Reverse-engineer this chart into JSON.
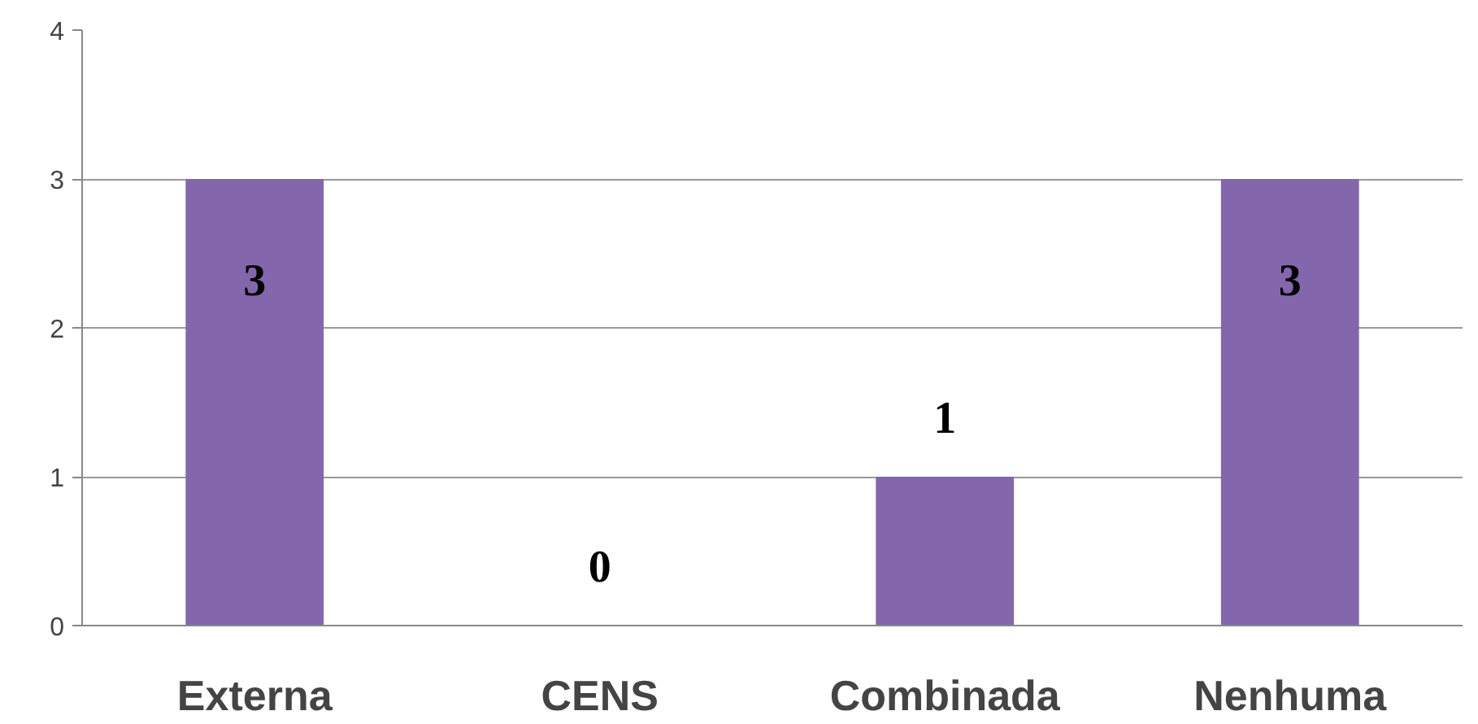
{
  "chart_data": {
    "type": "bar",
    "categories": [
      "Externa",
      "CENS",
      "Combinada",
      "Nenhuma"
    ],
    "values": [
      3,
      0,
      1,
      3
    ],
    "color": "#8466ac",
    "ylim": [
      0,
      4
    ],
    "yticks": [
      0,
      1,
      2,
      3,
      4
    ],
    "grid": "y",
    "data_labels": true
  }
}
